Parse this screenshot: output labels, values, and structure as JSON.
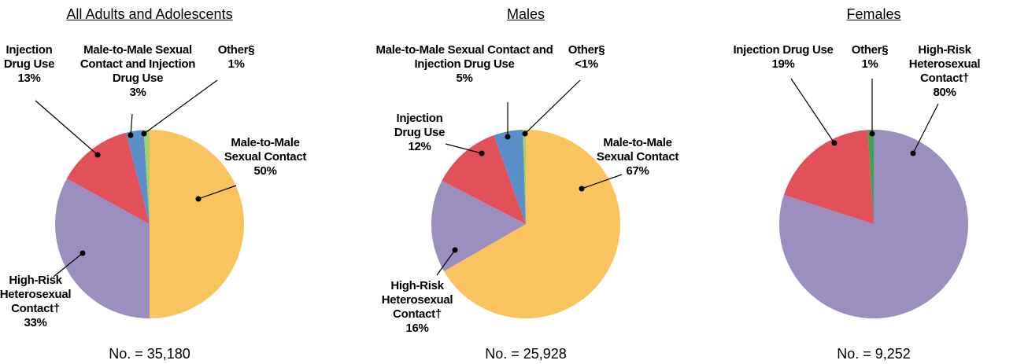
{
  "chart_data": [
    {
      "type": "pie",
      "title": "All Adults and Adolescents",
      "categories": [
        "Male-to-Male Sexual Contact",
        "High-Risk Heterosexual Contact†",
        "Injection Drug Use",
        "Male-to-Male Sexual Contact and Injection Drug Use",
        "Other§"
      ],
      "values": [
        50,
        33,
        13,
        3,
        1
      ],
      "value_labels": [
        "50%",
        "33%",
        "13%",
        "3%",
        "1%"
      ],
      "colors": [
        "#f9c35e",
        "#9b8fbf",
        "#e2505a",
        "#5b8fc9",
        "#a6cf6f"
      ],
      "footnote": "No. = 35,180"
    },
    {
      "type": "pie",
      "title": "Males",
      "categories": [
        "Male-to-Male Sexual Contact",
        "High-Risk Heterosexual Contact†",
        "Injection Drug Use",
        "Male-to-Male Sexual Contact and Injection Drug Use",
        "Other§"
      ],
      "values": [
        67,
        16,
        12,
        5,
        0.5
      ],
      "value_labels": [
        "67%",
        "16%",
        "12%",
        "5%",
        "<1%"
      ],
      "colors": [
        "#f9c35e",
        "#9b8fbf",
        "#e2505a",
        "#5b8fc9",
        "#a6cf6f"
      ],
      "footnote": "No. = 25,928"
    },
    {
      "type": "pie",
      "title": "Females",
      "categories": [
        "High-Risk Heterosexual Contact†",
        "Injection Drug Use",
        "Other§"
      ],
      "values": [
        80,
        19,
        1
      ],
      "value_labels": [
        "80%",
        "19%",
        "1%"
      ],
      "colors": [
        "#9b8fbf",
        "#e2505a",
        "#3fa34d"
      ],
      "footnote": "No. = 9,252"
    }
  ]
}
